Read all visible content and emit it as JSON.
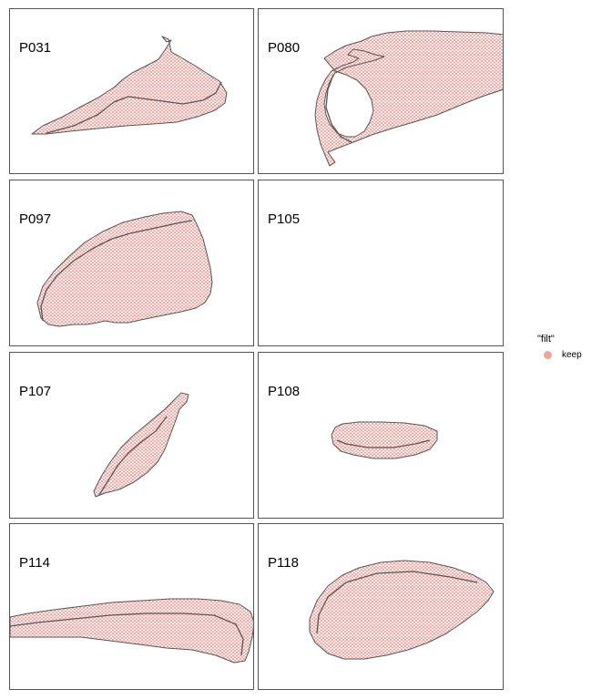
{
  "colors": {
    "spot": "#f3a39d",
    "outline": "#555555",
    "panel_border": "#555555"
  },
  "panels": [
    {
      "id": "P031"
    },
    {
      "id": "P080"
    },
    {
      "id": "P097"
    },
    {
      "id": "P105"
    },
    {
      "id": "P107"
    },
    {
      "id": "P108"
    },
    {
      "id": "P114"
    },
    {
      "id": "P118"
    }
  ],
  "legend": {
    "title": "\"filt\"",
    "items": [
      {
        "label": "keep",
        "color": "#f3a39d"
      }
    ]
  }
}
